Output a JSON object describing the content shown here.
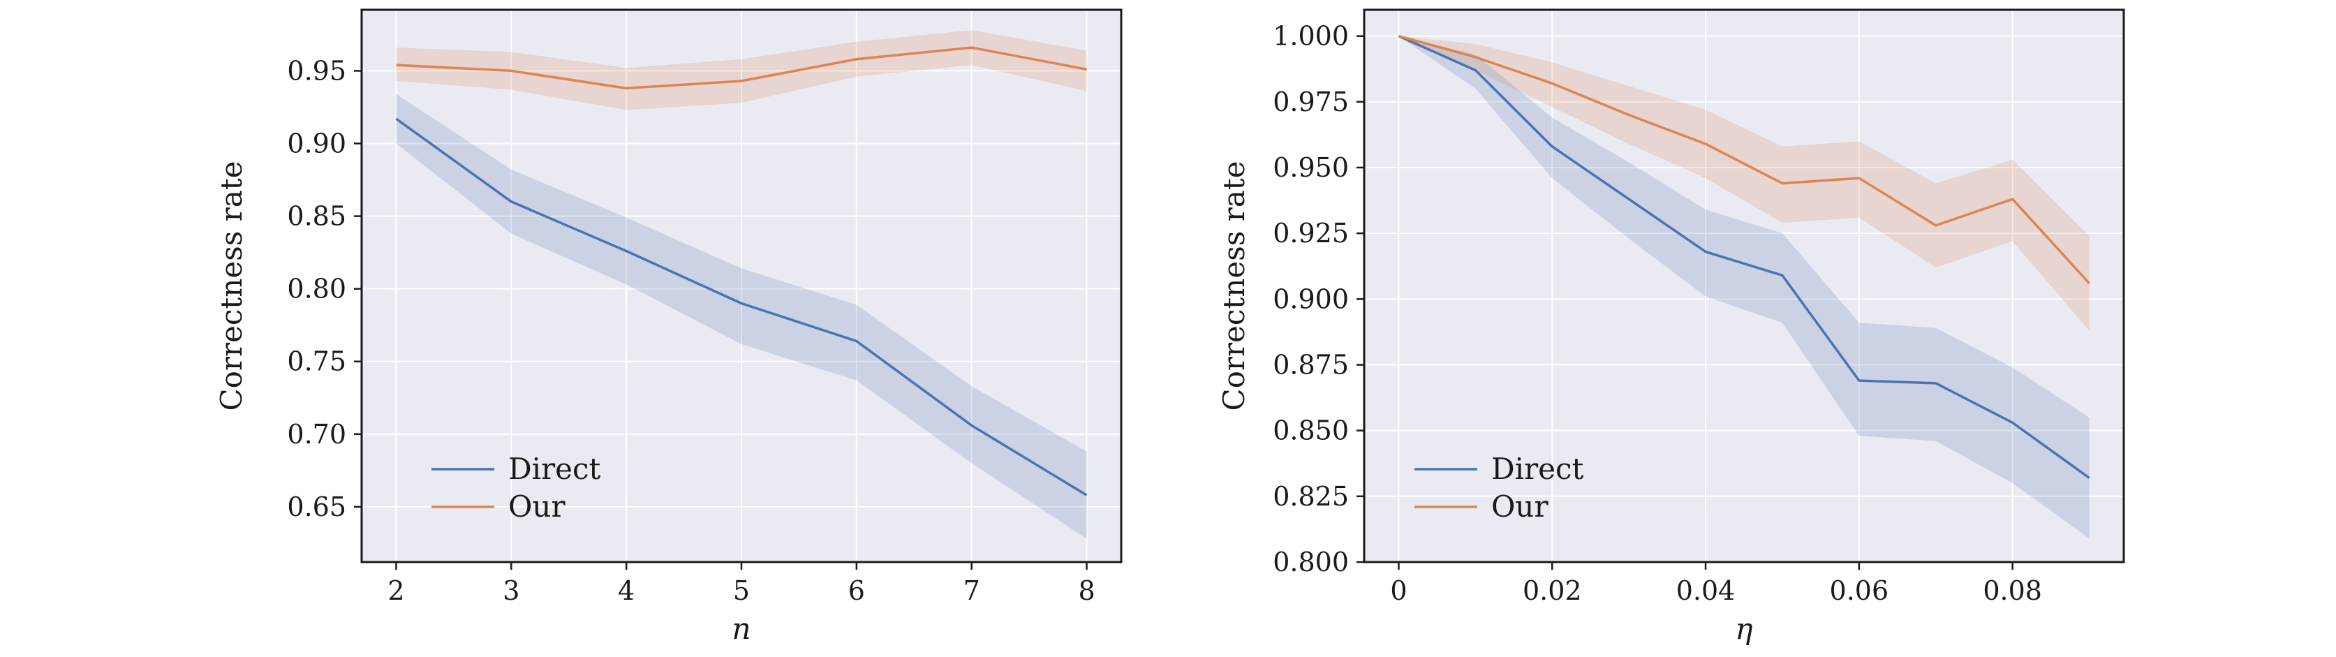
{
  "colors": {
    "background": "#eaeaf2",
    "grid": "#ffffff",
    "frame": "#1a1a1a",
    "direct": "#4c72b0",
    "our": "#dd8452"
  },
  "chart_data": [
    {
      "type": "line",
      "title": "",
      "xlabel": "n",
      "ylabel": "Correctness rate",
      "x": [
        2,
        3,
        4,
        5,
        6,
        7,
        8
      ],
      "xlim": [
        1.7,
        8.3
      ],
      "ylim": [
        0.612,
        0.992
      ],
      "xticks": [
        2,
        3,
        4,
        5,
        6,
        7,
        8
      ],
      "xtick_labels": [
        "2",
        "3",
        "4",
        "5",
        "6",
        "7",
        "8"
      ],
      "yticks": [
        0.65,
        0.7,
        0.75,
        0.8,
        0.85,
        0.9,
        0.95
      ],
      "ytick_labels": [
        "0.65",
        "0.70",
        "0.75",
        "0.80",
        "0.85",
        "0.90",
        "0.95"
      ],
      "grid": true,
      "legend_position": "lower-left",
      "series": [
        {
          "name": "Direct",
          "values": [
            0.917,
            0.86,
            0.826,
            0.79,
            0.764,
            0.706,
            0.658
          ],
          "lower": [
            0.9,
            0.838,
            0.803,
            0.762,
            0.737,
            0.68,
            0.628
          ],
          "upper": [
            0.934,
            0.882,
            0.849,
            0.814,
            0.789,
            0.733,
            0.688
          ]
        },
        {
          "name": "Our",
          "values": [
            0.954,
            0.95,
            0.938,
            0.943,
            0.958,
            0.966,
            0.951
          ],
          "lower": [
            0.943,
            0.937,
            0.923,
            0.928,
            0.946,
            0.954,
            0.936
          ],
          "upper": [
            0.966,
            0.963,
            0.952,
            0.958,
            0.97,
            0.978,
            0.964
          ]
        }
      ]
    },
    {
      "type": "line",
      "title": "",
      "xlabel": "η",
      "ylabel": "Correctness rate",
      "x": [
        0,
        0.01,
        0.02,
        0.03,
        0.04,
        0.05,
        0.06,
        0.07,
        0.08,
        0.09
      ],
      "xlim": [
        -0.0045,
        0.0945
      ],
      "ylim": [
        0.8,
        1.01
      ],
      "xticks": [
        0,
        0.02,
        0.04,
        0.06,
        0.08
      ],
      "xtick_labels": [
        "0",
        "0.02",
        "0.04",
        "0.06",
        "0.08"
      ],
      "yticks": [
        0.8,
        0.825,
        0.85,
        0.875,
        0.9,
        0.925,
        0.95,
        0.975,
        1.0
      ],
      "ytick_labels": [
        "0.800",
        "0.825",
        "0.850",
        "0.875",
        "0.900",
        "0.925",
        "0.950",
        "0.975",
        "1.000"
      ],
      "grid": true,
      "legend_position": "lower-left",
      "series": [
        {
          "name": "Direct",
          "values": [
            1.0,
            0.987,
            0.958,
            0.938,
            0.918,
            0.909,
            0.869,
            0.868,
            0.853,
            0.832
          ],
          "lower": [
            1.0,
            0.98,
            0.946,
            0.923,
            0.901,
            0.891,
            0.848,
            0.846,
            0.83,
            0.809
          ],
          "upper": [
            1.0,
            0.993,
            0.969,
            0.952,
            0.934,
            0.925,
            0.891,
            0.889,
            0.874,
            0.855
          ]
        },
        {
          "name": "Our",
          "values": [
            1.0,
            0.992,
            0.982,
            0.97,
            0.959,
            0.944,
            0.946,
            0.928,
            0.938,
            0.906
          ],
          "lower": [
            1.0,
            0.987,
            0.973,
            0.959,
            0.946,
            0.929,
            0.931,
            0.912,
            0.922,
            0.888
          ],
          "upper": [
            1.0,
            0.997,
            0.99,
            0.981,
            0.972,
            0.958,
            0.96,
            0.944,
            0.953,
            0.924
          ]
        }
      ]
    }
  ]
}
